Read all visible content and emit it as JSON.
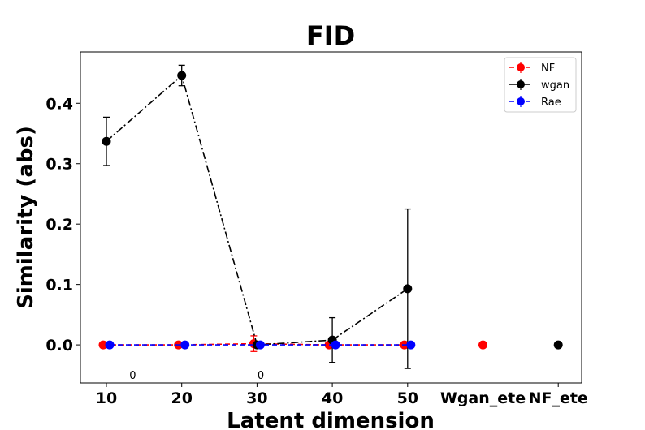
{
  "chart_data": {
    "type": "line",
    "title": "FID",
    "xlabel": "Latent dimension",
    "ylabel": "Similarity (abs)",
    "categories": [
      "10",
      "20",
      "30",
      "40",
      "50",
      "Wgan_ete",
      "NF_ete"
    ],
    "yticks": [
      0.0,
      0.1,
      0.2,
      0.3,
      0.4
    ],
    "ytick_labels": [
      "0.0",
      "0.1",
      "0.2",
      "0.3",
      "0.4"
    ],
    "ylim": [
      -0.063,
      0.485
    ],
    "legend_position": "top-right",
    "series": [
      {
        "name": "NF",
        "color": "#ff0000",
        "linestyle": "dashed",
        "points": [
          {
            "cat": 0,
            "y": 0.0,
            "err": 0.0
          },
          {
            "cat": 1,
            "y": 0.0,
            "err": 0.0
          },
          {
            "cat": 2,
            "y": 0.002,
            "err": 0.013
          },
          {
            "cat": 3,
            "y": 0.0,
            "err": 0.0
          },
          {
            "cat": 4,
            "y": 0.0,
            "err": 0.0
          }
        ],
        "standalone": [
          {
            "cat": 5,
            "y": 0.0
          }
        ]
      },
      {
        "name": "wgan",
        "color": "#000000",
        "linestyle": "dashdot",
        "points": [
          {
            "cat": 0,
            "y": 0.337,
            "err": 0.04
          },
          {
            "cat": 1,
            "y": 0.446,
            "err": 0.017
          },
          {
            "cat": 2,
            "y": 0.0,
            "err": 0.0
          },
          {
            "cat": 3,
            "y": 0.008,
            "err": 0.037
          },
          {
            "cat": 4,
            "y": 0.093,
            "err": 0.132
          }
        ],
        "standalone": [
          {
            "cat": 6,
            "y": 0.0
          }
        ]
      },
      {
        "name": "Rae",
        "color": "#0000ff",
        "linestyle": "dashed",
        "points": [
          {
            "cat": 0,
            "y": 0.0,
            "err": 0.0
          },
          {
            "cat": 1,
            "y": 0.0,
            "err": 0.0
          },
          {
            "cat": 2,
            "y": 0.0,
            "err": 0.0
          },
          {
            "cat": 3,
            "y": 0.0,
            "err": 0.0
          },
          {
            "cat": 4,
            "y": 0.0,
            "err": 0.0
          }
        ],
        "standalone": []
      }
    ],
    "annotations": [
      {
        "text": "0",
        "cat": 0.35,
        "y": -0.056
      },
      {
        "text": "0",
        "cat": 2.05,
        "y": -0.056
      }
    ]
  }
}
